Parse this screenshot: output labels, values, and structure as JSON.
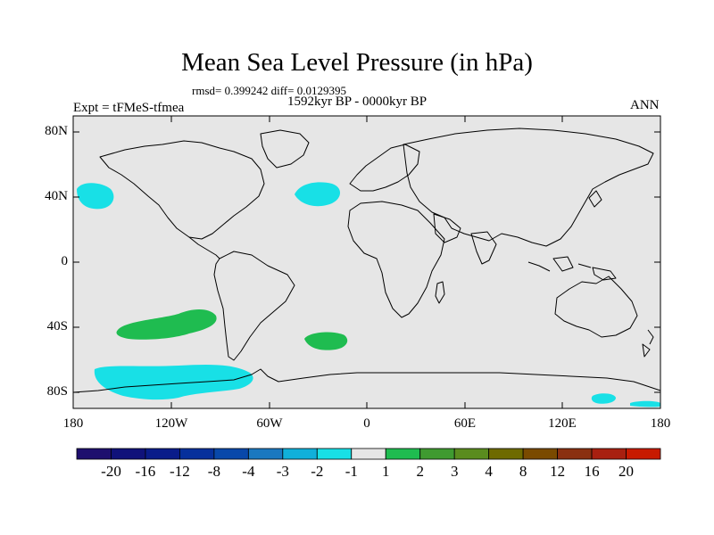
{
  "title": "Mean Sea Level Pressure (in hPa)",
  "stats_line": "rmsd= 0.399242 diff= 0.0129395",
  "experiment": "Expt = tFMeS-tfmea",
  "period": "1592kyr BP - 0000kyr BP",
  "season": "ANN",
  "y_axis": {
    "labels": [
      "80N",
      "40N",
      "0",
      "40S",
      "80S"
    ],
    "values": [
      80,
      40,
      0,
      -40,
      -80
    ]
  },
  "x_axis": {
    "labels": [
      "180",
      "120W",
      "60W",
      "0",
      "60E",
      "120E",
      "180"
    ],
    "values": [
      -180,
      -120,
      -60,
      0,
      60,
      120,
      180
    ]
  },
  "lon_range": [
    -180,
    180
  ],
  "lat_range": [
    -90,
    90
  ],
  "colorbar": {
    "labels": [
      "-20",
      "-16",
      "-12",
      "-8",
      "-4",
      "-3",
      "-2",
      "-1",
      "1",
      "2",
      "3",
      "4",
      "8",
      "12",
      "16",
      "20"
    ],
    "colors": [
      "#1e0f6e",
      "#10127a",
      "#0a1c8a",
      "#06309c",
      "#0848aa",
      "#1a78c0",
      "#10b0da",
      "#18e0e6",
      "#e6e6e6",
      "#1fbc50",
      "#3f9a30",
      "#5a8c1e",
      "#6e6a00",
      "#7a4a00",
      "#8a3010",
      "#a82010",
      "#c81a00"
    ]
  },
  "map_colors": {
    "background": "#e6e6e6",
    "negative": "#18e0e6",
    "positive": "#1fbc50",
    "coast": "#000000"
  }
}
